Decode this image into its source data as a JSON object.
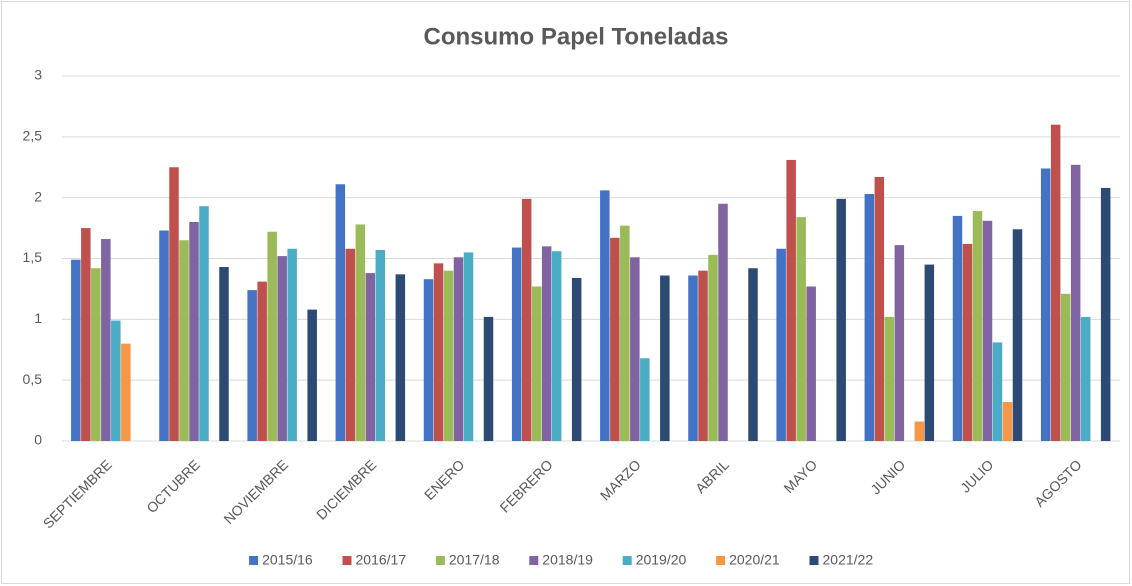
{
  "chart_data": {
    "type": "bar",
    "title": "Consumo Papel Toneladas",
    "categories": [
      "SEPTIEMBRE",
      "OCTUBRE",
      "NOVIEMBRE",
      "DICIEMBRE",
      "ENERO",
      "FEBRERO",
      "MARZO",
      "ABRIL",
      "MAYO",
      "JUNIO",
      "JULIO",
      "AGOSTO"
    ],
    "series": [
      {
        "name": "2015/16",
        "color": "#4472c4",
        "values": [
          1.49,
          1.73,
          1.24,
          2.11,
          1.33,
          1.59,
          2.06,
          1.36,
          1.58,
          2.03,
          1.85,
          2.24
        ]
      },
      {
        "name": "2016/17",
        "color": "#c0504d",
        "values": [
          1.75,
          2.25,
          1.31,
          1.58,
          1.46,
          1.99,
          1.67,
          1.4,
          2.31,
          2.17,
          1.62,
          2.6
        ]
      },
      {
        "name": "2017/18",
        "color": "#9bbb59",
        "values": [
          1.42,
          1.65,
          1.72,
          1.78,
          1.4,
          1.27,
          1.77,
          1.53,
          1.84,
          1.02,
          1.89,
          1.21
        ]
      },
      {
        "name": "2018/19",
        "color": "#8064a2",
        "values": [
          1.66,
          1.8,
          1.52,
          1.38,
          1.51,
          1.6,
          1.51,
          1.95,
          1.27,
          1.61,
          1.81,
          2.27
        ]
      },
      {
        "name": "2019/20",
        "color": "#4bacc6",
        "values": [
          0.99,
          1.93,
          1.58,
          1.57,
          1.55,
          1.56,
          0.68,
          null,
          null,
          null,
          0.81,
          1.02
        ]
      },
      {
        "name": "2020/21",
        "color": "#f79646",
        "values": [
          0.8,
          null,
          null,
          null,
          null,
          null,
          null,
          null,
          null,
          0.16,
          0.32,
          null
        ]
      },
      {
        "name": "2021/22",
        "color": "#2c4a74",
        "values": [
          null,
          1.43,
          1.08,
          1.37,
          1.02,
          1.34,
          1.36,
          1.42,
          1.99,
          1.45,
          1.74,
          2.08
        ]
      }
    ],
    "ylim": [
      0,
      3
    ],
    "yticks": [
      0,
      {
        "value": 0.5,
        "label": "0,5"
      },
      1,
      {
        "value": 1.5,
        "label": "1,5"
      },
      2,
      {
        "value": 2.5,
        "label": "2,5"
      },
      3
    ],
    "grid": true
  }
}
